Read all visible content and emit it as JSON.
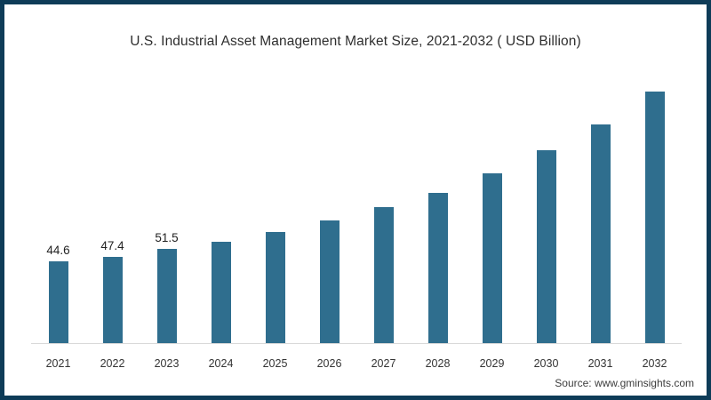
{
  "page": {
    "background_color": "#ffffff",
    "frame_border_color": "#0e3c58"
  },
  "chart_data": {
    "type": "bar",
    "title": "U.S. Industrial Asset Management Market Size, 2021-2032 ( USD Billion)",
    "categories": [
      "2021",
      "2022",
      "2023",
      "2024",
      "2025",
      "2026",
      "2027",
      "2028",
      "2029",
      "2030",
      "2031",
      "2032"
    ],
    "values": [
      44.6,
      47.4,
      51.5,
      55.4,
      60.9,
      67.0,
      74.2,
      82.3,
      92.9,
      105.5,
      119.5,
      137.8
    ],
    "data_labels": [
      "44.6",
      "47.4",
      "51.5",
      "",
      "",
      "",
      "",
      "",
      "",
      "",
      "",
      ""
    ],
    "xlabel": "",
    "ylabel": "",
    "ylim": [
      0,
      144
    ],
    "grid": false,
    "legend": "none",
    "bar_color": "#2f6e8e",
    "axis_line_color": "#d9d9d9",
    "source": "Source: www.gminsights.com"
  }
}
